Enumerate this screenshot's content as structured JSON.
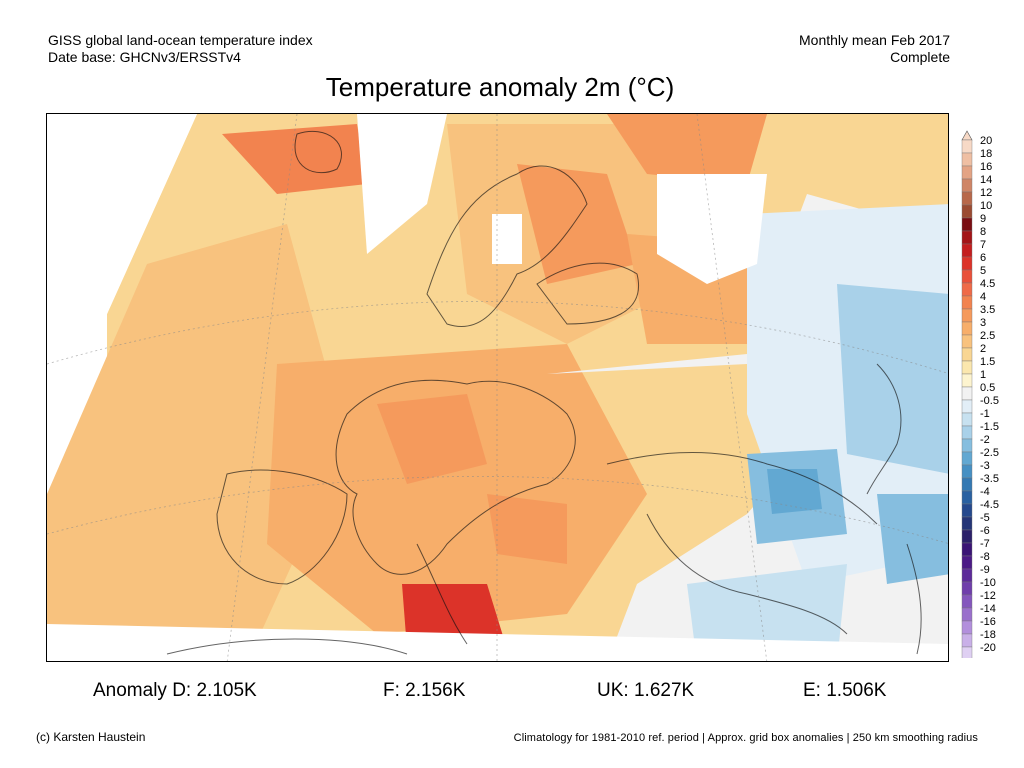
{
  "header": {
    "dataset_line1": "GISS global land-ocean temperature index",
    "dataset_line2": "Date base: GHCNv3/ERSSTv4",
    "period_line1": "Monthly mean Feb 2017",
    "period_line2": "Complete"
  },
  "chart_data": {
    "type": "heatmap",
    "title": "Temperature anomaly 2m (°C)",
    "colorbar": {
      "levels": [
        "20",
        "18",
        "16",
        "14",
        "12",
        "10",
        "9",
        "8",
        "7",
        "6",
        "5",
        "4.5",
        "4",
        "3.5",
        "3",
        "2.5",
        "2",
        "1.5",
        "1",
        "0.5",
        "-0.5",
        "-1",
        "-1.5",
        "-2",
        "-2.5",
        "-3",
        "-3.5",
        "-4",
        "-4.5",
        "-5",
        "-6",
        "-7",
        "-8",
        "-9",
        "-10",
        "-12",
        "-14",
        "-16",
        "-18",
        "-20"
      ],
      "colors": [
        "#f7d9c6",
        "#efbfa3",
        "#e3a384",
        "#cf8566",
        "#b8684a",
        "#9b4b32",
        "#7a0d12",
        "#a31417",
        "#c41e1f",
        "#dc3329",
        "#e9503a",
        "#ef6a48",
        "#f2834f",
        "#f59a5c",
        "#f7ae6a",
        "#f8c27e",
        "#f9d693",
        "#fbe7ae",
        "#fdf4cf",
        "#f2f2f2",
        "#e2eef7",
        "#c7e1f0",
        "#a9d1e9",
        "#86bedf",
        "#62a8d2",
        "#4690c3",
        "#3479b3",
        "#2a61a1",
        "#25498d",
        "#243577",
        "#2b2069",
        "#3a1475",
        "#4b1a86",
        "#5c2a99",
        "#6f3eab",
        "#8456bd",
        "#9a70cc",
        "#b28fdc",
        "#c9b0e8",
        "#dfd0f3"
      ]
    },
    "region_anomalies": [
      {
        "label": "Anomaly D:",
        "value": "2.105K"
      },
      {
        "label": "F:",
        "value": "2.156K"
      },
      {
        "label": "UK:",
        "value": "1.627K"
      },
      {
        "label": "E:",
        "value": "1.506K"
      }
    ]
  },
  "footer": {
    "copyright": "(c) Karsten Haustein",
    "note": "Climatology for 1981-2010 ref. period | Approx. grid box anomalies | 250 km smoothing radius"
  }
}
